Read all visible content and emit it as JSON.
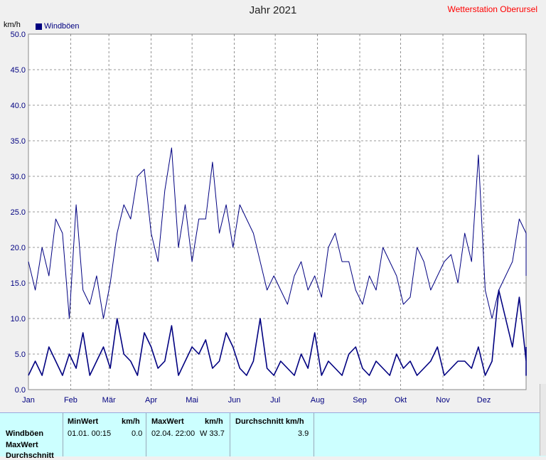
{
  "header": {
    "title": "Jahr 2021",
    "station": "Wetterstation Oberursel",
    "unit": "km/h"
  },
  "legend": {
    "label": "Windböen",
    "color": "#000080"
  },
  "chart_data": {
    "type": "line",
    "title": "Jahr 2021",
    "ylabel": "km/h",
    "ylim": [
      0,
      50
    ],
    "yticks": [
      "0.0",
      "5.0",
      "10.0",
      "15.0",
      "20.0",
      "25.0",
      "30.0",
      "35.0",
      "40.0",
      "45.0",
      "50.0"
    ],
    "xlim": [
      0,
      365
    ],
    "months": [
      {
        "label": "Jan",
        "day": 0
      },
      {
        "label": "Feb",
        "day": 31
      },
      {
        "label": "Mär",
        "day": 59
      },
      {
        "label": "Apr",
        "day": 90
      },
      {
        "label": "Mai",
        "day": 120
      },
      {
        "label": "Jun",
        "day": 151
      },
      {
        "label": "Jul",
        "day": 181
      },
      {
        "label": "Aug",
        "day": 212
      },
      {
        "label": "Sep",
        "day": 243
      },
      {
        "label": "Okt",
        "day": 273
      },
      {
        "label": "Nov",
        "day": 304
      },
      {
        "label": "Dez",
        "day": 334
      }
    ],
    "grid": true,
    "legend_position": "top-left",
    "series": [
      {
        "name": "Windböen",
        "color": "#000080",
        "x_step_days": 5,
        "upper": [
          18,
          14,
          20,
          16,
          24,
          22,
          10,
          26,
          14,
          12,
          16,
          10,
          15,
          22,
          26,
          24,
          30,
          31,
          22,
          18,
          28,
          34,
          20,
          26,
          18,
          24,
          24,
          32,
          22,
          26,
          20,
          26,
          24,
          22,
          18,
          14,
          16,
          14,
          12,
          16,
          18,
          14,
          16,
          13,
          20,
          22,
          18,
          18,
          14,
          12,
          16,
          14,
          20,
          18,
          16,
          12,
          13,
          20,
          18,
          14,
          16,
          18,
          19,
          15,
          22,
          18,
          33,
          14,
          10,
          14,
          16,
          18,
          24,
          22,
          20,
          18,
          16
        ],
        "lower": [
          2,
          4,
          2,
          6,
          4,
          2,
          5,
          3,
          8,
          2,
          4,
          6,
          3,
          10,
          5,
          4,
          2,
          8,
          6,
          3,
          4,
          9,
          2,
          4,
          6,
          5,
          7,
          3,
          4,
          8,
          6,
          3,
          2,
          4,
          10,
          3,
          2,
          4,
          3,
          2,
          5,
          3,
          8,
          2,
          4,
          3,
          2,
          5,
          6,
          3,
          2,
          4,
          3,
          2,
          5,
          3,
          4,
          2,
          3,
          4,
          6,
          2,
          3,
          4,
          4,
          3,
          6,
          2,
          4,
          14,
          10,
          6,
          13,
          4,
          2,
          3,
          6
        ]
      }
    ]
  },
  "stats": {
    "row_labels": [
      "Windböen",
      "MaxWert",
      "Durchschnitt"
    ],
    "min": {
      "header": "MinWert",
      "unit": "km/h",
      "datetime": "01.01.  00:15",
      "value": "0.0"
    },
    "max": {
      "header": "MaxWert",
      "unit": "km/h",
      "datetime": "02.04.  22:00",
      "value": "W 33.7"
    },
    "avg": {
      "header": "Durchschnitt km/h",
      "value": "3.9"
    }
  }
}
